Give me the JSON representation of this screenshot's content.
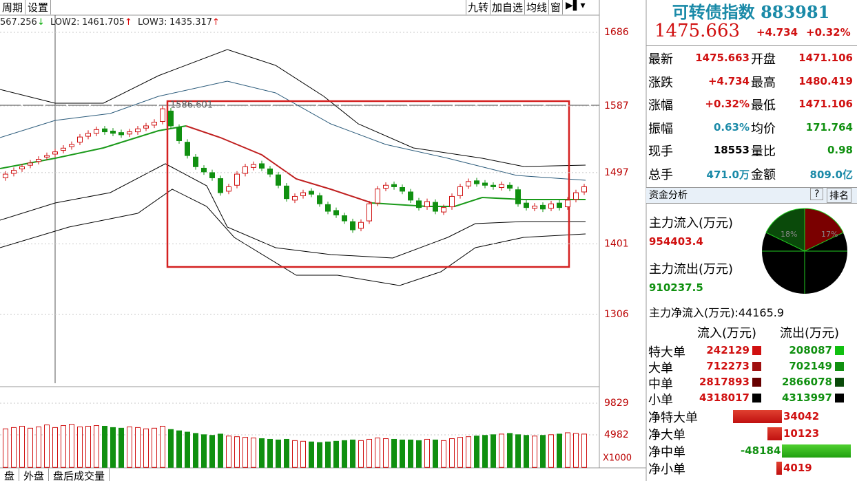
{
  "toolbar": {
    "left": [
      "周期",
      "设置"
    ],
    "right": [
      "九转",
      "加自选",
      "均线",
      "窗"
    ]
  },
  "indicators": [
    {
      "text": "567.256",
      "arrow": "↓"
    },
    {
      "label": "LOW2:",
      "text": "1461.705",
      "arrow": "↑"
    },
    {
      "label": "LOW3:",
      "text": "1435.317",
      "arrow": "↑"
    }
  ],
  "price_chart": {
    "yticks": [
      1686,
      1587,
      1497,
      1401,
      1306
    ],
    "marker_label": "1586.601",
    "candles": {
      "open": [
        1490,
        1496,
        1502,
        1507,
        1512,
        1518,
        1522,
        1527,
        1532,
        1538,
        1546,
        1550,
        1556,
        1553,
        1551,
        1549,
        1552,
        1557,
        1561,
        1566,
        1580,
        1558,
        1538,
        1518,
        1503,
        1497,
        1489,
        1472,
        1480,
        1496,
        1504,
        1509,
        1502,
        1494,
        1479,
        1460,
        1466,
        1472,
        1466,
        1454,
        1446,
        1439,
        1431,
        1422,
        1432,
        1456,
        1476,
        1481,
        1477,
        1471,
        1459,
        1451,
        1457,
        1444,
        1451,
        1466,
        1479,
        1486,
        1483,
        1480,
        1477,
        1480,
        1474,
        1456,
        1449,
        1453,
        1449,
        1456,
        1451,
        1461,
        1471
      ],
      "high": [
        1499,
        1504,
        1509,
        1514,
        1519,
        1524,
        1529,
        1534,
        1539,
        1549,
        1554,
        1559,
        1560,
        1557,
        1555,
        1556,
        1560,
        1564,
        1569,
        1587,
        1584,
        1562,
        1542,
        1522,
        1507,
        1501,
        1493,
        1482,
        1499,
        1509,
        1512,
        1513,
        1506,
        1498,
        1483,
        1469,
        1474,
        1476,
        1470,
        1458,
        1450,
        1443,
        1435,
        1434,
        1459,
        1479,
        1484,
        1485,
        1481,
        1475,
        1463,
        1462,
        1461,
        1454,
        1469,
        1482,
        1489,
        1490,
        1487,
        1484,
        1485,
        1484,
        1478,
        1460,
        1456,
        1457,
        1459,
        1460,
        1464,
        1474,
        1482
      ],
      "low": [
        1486,
        1492,
        1498,
        1503,
        1508,
        1514,
        1518,
        1523,
        1528,
        1534,
        1542,
        1546,
        1548,
        1546,
        1544,
        1545,
        1548,
        1553,
        1557,
        1562,
        1556,
        1536,
        1516,
        1501,
        1494,
        1486,
        1466,
        1468,
        1476,
        1492,
        1500,
        1499,
        1491,
        1476,
        1458,
        1456,
        1462,
        1464,
        1451,
        1441,
        1436,
        1428,
        1416,
        1418,
        1428,
        1452,
        1472,
        1474,
        1468,
        1456,
        1446,
        1447,
        1441,
        1440,
        1447,
        1462,
        1475,
        1478,
        1476,
        1474,
        1473,
        1472,
        1451,
        1446,
        1445,
        1444,
        1445,
        1446,
        1447,
        1457,
        1467
      ],
      "close": [
        1495,
        1500,
        1505,
        1510,
        1515,
        1520,
        1525,
        1530,
        1535,
        1545,
        1550,
        1555,
        1552,
        1550,
        1548,
        1552,
        1556,
        1560,
        1565,
        1583,
        1560,
        1540,
        1520,
        1505,
        1498,
        1490,
        1470,
        1478,
        1495,
        1505,
        1508,
        1503,
        1495,
        1480,
        1462,
        1465,
        1470,
        1468,
        1455,
        1445,
        1440,
        1432,
        1420,
        1430,
        1455,
        1475,
        1480,
        1478,
        1472,
        1460,
        1450,
        1458,
        1445,
        1450,
        1465,
        1478,
        1485,
        1482,
        1480,
        1478,
        1481,
        1476,
        1455,
        1450,
        1452,
        1448,
        1455,
        1450,
        1460,
        1470,
        1478
      ]
    }
  },
  "volume_chart": {
    "yticks": [
      9829,
      4982
    ],
    "unit": "X1000",
    "values": [
      5900,
      6100,
      6300,
      6000,
      6200,
      6500,
      6100,
      6400,
      6600,
      6200,
      6300,
      6400,
      6300,
      6100,
      6000,
      6200,
      6100,
      5900,
      6000,
      6300,
      5800,
      5600,
      5400,
      5200,
      5000,
      4900,
      5100,
      4800,
      4700,
      4600,
      4500,
      4400,
      4300,
      4200,
      4300,
      4100,
      4000,
      3900,
      3800,
      3900,
      4000,
      4100,
      4200,
      4100,
      4300,
      4500,
      4400,
      4300,
      4200,
      4200,
      4100,
      4300,
      4200,
      4100,
      4400,
      4600,
      4700,
      4800,
      4900,
      5000,
      5100,
      5200,
      5000,
      4900,
      4800,
      4900,
      5000,
      5100,
      5300,
      5200,
      5100
    ]
  },
  "tabs": [
    "盘",
    "外盘",
    "盘后成交量"
  ],
  "quote": {
    "name": "可转债指数 883981",
    "price": "1475.663",
    "change": "+4.734",
    "pct": "+0.32%",
    "rows": [
      [
        "最新",
        "1475.663",
        "开盘",
        "1471.106"
      ],
      [
        "涨跌",
        "+4.734",
        "最高",
        "1480.419"
      ],
      [
        "涨幅",
        "+0.32%",
        "最低",
        "1471.106"
      ],
      [
        "振幅",
        "0.63%",
        "均价",
        "171.764"
      ],
      [
        "现手",
        "18553",
        "量比",
        "0.98"
      ],
      [
        "总手",
        "471.0万",
        "金额",
        "809.0亿"
      ]
    ]
  },
  "fund": {
    "title": "资金分析",
    "help": "?",
    "rank": "排名",
    "in_label": "主力流入(万元)",
    "in_value": "954403.4",
    "out_label": "主力流出(万元)",
    "out_value": "910237.5",
    "net": "主力净流入(万元):44165.9",
    "pie_labels": [
      "18%",
      "17%"
    ],
    "head": [
      "流入(万元)",
      "流出(万元)"
    ],
    "rows": [
      [
        "特大单",
        "242129",
        "208087"
      ],
      [
        "大单",
        "712273",
        "702149"
      ],
      [
        "中单",
        "2817893",
        "2866078"
      ],
      [
        "小单",
        "4318017",
        "4313997"
      ]
    ],
    "net_rows": {
      "names": [
        "净特大单",
        "净大单",
        "净中单",
        "净小单"
      ],
      "values": [
        34042,
        10123,
        -48184,
        4019
      ]
    }
  }
}
